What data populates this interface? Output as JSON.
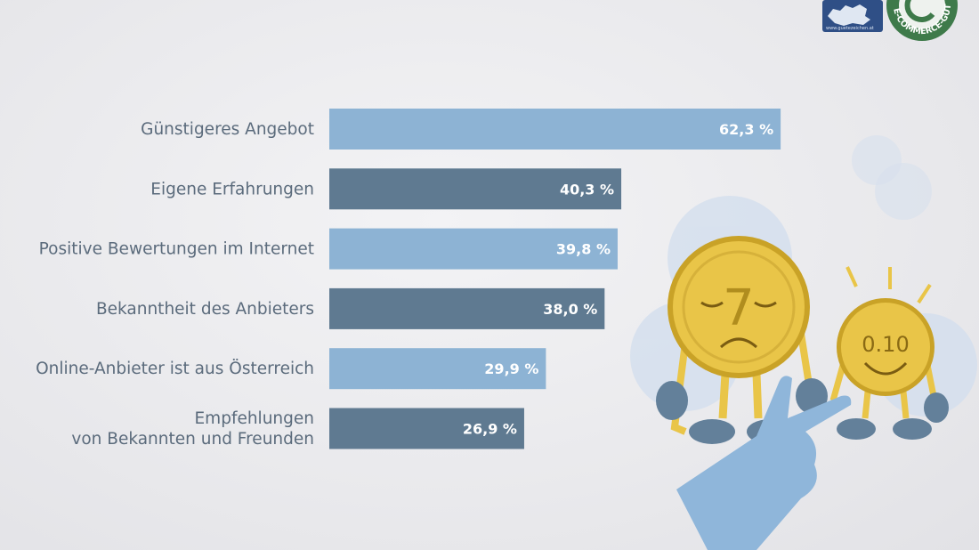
{
  "chart_data": {
    "type": "bar",
    "orientation": "horizontal",
    "categories": [
      "Günstigeres Angebot",
      "Eigene Erfahrungen",
      "Positive Bewertungen im Internet",
      "Bekanntheit des Anbieters",
      "Online-Anbieter ist aus Österreich",
      "Empfehlungen\nvon Bekannten und Freunden"
    ],
    "values": [
      62.3,
      40.3,
      39.8,
      38.0,
      29.9,
      26.9
    ],
    "value_labels": [
      "62,3 %",
      "40,3 %",
      "39,8 %",
      "38,0 %",
      "29,9 %",
      "26,9 %"
    ],
    "unit": "%",
    "xlim": [
      0,
      100
    ],
    "grid": false,
    "legend": "none",
    "colors": [
      "#8db3d4",
      "#5f7a91",
      "#8db3d4",
      "#5f7a91",
      "#8db3d4",
      "#5f7a91"
    ]
  },
  "logo": {
    "url_text": "www.guetezeichen.at",
    "ring_text": "E-COMMERCE-GÜTEZEICHEN"
  },
  "illustration": {
    "coin_left_digit": "7",
    "coin_right_digits": "0.10",
    "colors": {
      "coin": "#e9c548",
      "coin_dark": "#c9a227",
      "hand": "#8fb6da",
      "shoe": "#63809a"
    }
  }
}
